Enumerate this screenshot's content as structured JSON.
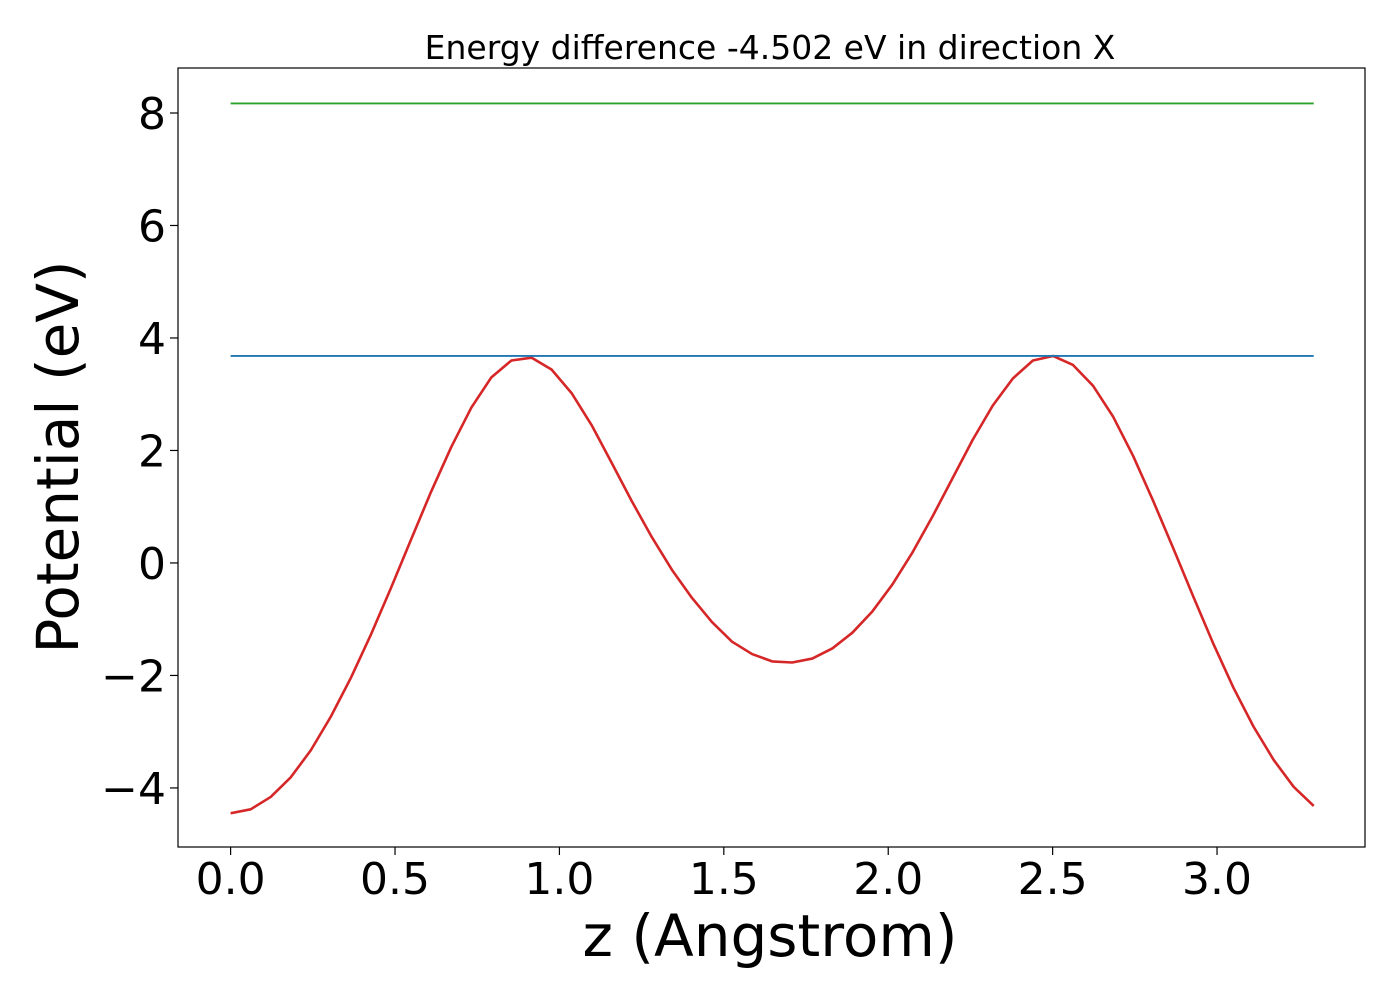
{
  "chart_data": {
    "type": "line",
    "title": "Energy difference -4.502 eV in direction X",
    "xlabel": "z (Angstrom)",
    "ylabel": "Potential (eV)",
    "xlim": [
      -0.16,
      3.45
    ],
    "ylim": [
      -5.05,
      8.8
    ],
    "xticks": [
      0.0,
      0.5,
      1.0,
      1.5,
      2.0,
      2.5,
      3.0
    ],
    "xtick_labels": [
      "0.0",
      "0.5",
      "1.0",
      "1.5",
      "2.0",
      "2.5",
      "3.0"
    ],
    "yticks": [
      -4,
      -2,
      0,
      2,
      4,
      6,
      8
    ],
    "ytick_labels": [
      "−4",
      "−2",
      "0",
      "2",
      "4",
      "6",
      "8"
    ],
    "grid": false,
    "legend": "none",
    "series": [
      {
        "color": "#d62728",
        "x": [
          0.0,
          0.061,
          0.122,
          0.183,
          0.244,
          0.305,
          0.366,
          0.427,
          0.488,
          0.549,
          0.61,
          0.671,
          0.732,
          0.793,
          0.854,
          0.915,
          0.976,
          1.037,
          1.098,
          1.159,
          1.22,
          1.281,
          1.342,
          1.403,
          1.464,
          1.525,
          1.586,
          1.647,
          1.708,
          1.769,
          1.83,
          1.891,
          1.952,
          2.013,
          2.074,
          2.135,
          2.196,
          2.257,
          2.318,
          2.379,
          2.44,
          2.501,
          2.562,
          2.623,
          2.684,
          2.745,
          2.806,
          2.867,
          2.928,
          2.989,
          3.05,
          3.111,
          3.172,
          3.233,
          3.294
        ],
        "values": [
          -4.45,
          -4.38,
          -4.16,
          -3.81,
          -3.33,
          -2.73,
          -2.04,
          -1.27,
          -0.44,
          0.42,
          1.27,
          2.06,
          2.76,
          3.3,
          3.6,
          3.65,
          3.44,
          3.02,
          2.45,
          1.78,
          1.1,
          0.46,
          -0.12,
          -0.62,
          -1.05,
          -1.4,
          -1.62,
          -1.75,
          -1.77,
          -1.7,
          -1.52,
          -1.24,
          -0.86,
          -0.38,
          0.19,
          0.83,
          1.51,
          2.19,
          2.8,
          3.28,
          3.6,
          3.68,
          3.52,
          3.15,
          2.6,
          1.9,
          1.1,
          0.26,
          -0.6,
          -1.44,
          -2.22,
          -2.91,
          -3.5,
          -3.98,
          -4.32
        ]
      },
      {
        "color": "#1f77b4",
        "x": [
          0.0,
          3.294
        ],
        "values": [
          3.68,
          3.68
        ]
      },
      {
        "color": "#2ca02c",
        "x": [
          0.0,
          3.294
        ],
        "values": [
          8.17,
          8.17
        ]
      }
    ]
  }
}
